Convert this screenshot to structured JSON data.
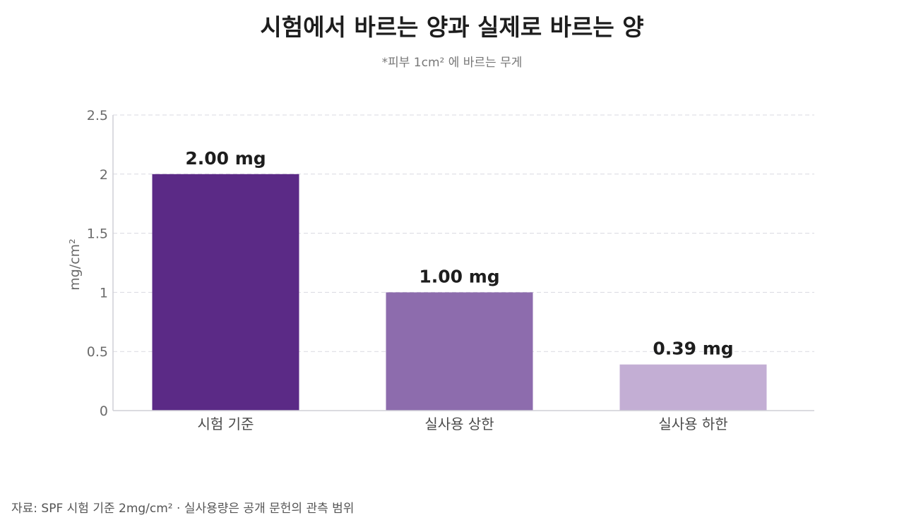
{
  "title": "시험에서 바르는 양과 실제로 바르는 양",
  "subtitle": "*피부 1cm² 에 바르는 무게",
  "source": "자료: SPF 시험 기준 2mg/cm² · 실사용량은 공개 문헌의 관측 범위",
  "chart_data": {
    "type": "bar",
    "title": "시험에서 바르는 양과 실제로 바르는 양",
    "subtitle": "*피부 1cm² 에 바르는 무게",
    "xlabel": "",
    "ylabel": "mg/cm²",
    "categories": [
      "시험 기준",
      "실사용 상한",
      "실사용 하한"
    ],
    "values": [
      2.0,
      1.0,
      0.39
    ],
    "data_labels": [
      "2.00 mg",
      "1.00 mg",
      "0.39 mg"
    ],
    "colors": [
      "#5b2a86",
      "#8d6cad",
      "#c3aed4"
    ],
    "ylim": [
      0,
      2.5
    ],
    "yticks": [
      0,
      0.5,
      1,
      1.5,
      2,
      2.5
    ],
    "ytick_labels": [
      "0",
      "0.5",
      "1",
      "1.5",
      "2",
      "2.5"
    ],
    "grid": true,
    "legend": "none"
  }
}
